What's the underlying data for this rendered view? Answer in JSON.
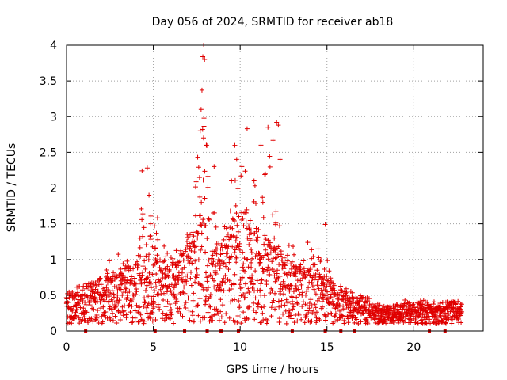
{
  "chart_data": {
    "type": "scatter",
    "title": "Day 056 of 2024, SRMTID for receiver ab18",
    "xlabel": "GPS time / hours",
    "ylabel": "SRMTID / TECUs",
    "xlim": [
      0,
      24
    ],
    "ylim": [
      0,
      4
    ],
    "xticks": [
      0,
      5,
      10,
      15,
      20
    ],
    "xtick_labels": [
      "0",
      "5",
      "10",
      "15",
      "20"
    ],
    "yticks": [
      0,
      0.5,
      1,
      1.5,
      2,
      2.5,
      3,
      3.5,
      4
    ],
    "ytick_labels": [
      "0",
      "0.5",
      "1",
      "1.5",
      "2",
      "2.5",
      "3",
      "3.5",
      "4"
    ],
    "grid": true,
    "legend": "none",
    "marker": "plus",
    "color": "#e00000",
    "data_span_hours": [
      0,
      22.8
    ],
    "envelope": [
      [
        0.0,
        0.3,
        0.55
      ],
      [
        1.0,
        0.35,
        0.6
      ],
      [
        2.0,
        0.4,
        0.9
      ],
      [
        3.0,
        0.45,
        1.3
      ],
      [
        4.0,
        0.55,
        1.2
      ],
      [
        4.5,
        0.7,
        2.3
      ],
      [
        5.5,
        0.6,
        1.4
      ],
      [
        6.5,
        0.6,
        1.3
      ],
      [
        7.3,
        0.8,
        1.8
      ],
      [
        7.8,
        1.1,
        4.0
      ],
      [
        8.3,
        0.7,
        2.1
      ],
      [
        9.0,
        0.7,
        1.7
      ],
      [
        9.6,
        0.9,
        2.6
      ],
      [
        10.2,
        1.0,
        2.8
      ],
      [
        11.0,
        0.8,
        2.4
      ],
      [
        11.8,
        0.8,
        2.9
      ],
      [
        12.5,
        0.6,
        1.4
      ],
      [
        13.5,
        0.5,
        1.2
      ],
      [
        14.5,
        0.45,
        1.5
      ],
      [
        15.5,
        0.35,
        0.7
      ],
      [
        17.0,
        0.25,
        0.45
      ],
      [
        18.5,
        0.15,
        0.35
      ],
      [
        20.0,
        0.2,
        0.5
      ],
      [
        21.5,
        0.2,
        0.4
      ],
      [
        22.8,
        0.2,
        0.35
      ]
    ],
    "peaks": [
      [
        4.35,
        2.24
      ],
      [
        4.65,
        2.28
      ],
      [
        4.75,
        1.9
      ],
      [
        4.85,
        1.5
      ],
      [
        7.7,
        2.8
      ],
      [
        7.75,
        3.1
      ],
      [
        7.8,
        3.37
      ],
      [
        7.85,
        3.84
      ],
      [
        7.9,
        4.0
      ],
      [
        7.95,
        3.8
      ],
      [
        8.05,
        2.6
      ],
      [
        8.5,
        2.3
      ],
      [
        9.5,
        2.1
      ],
      [
        9.8,
        2.4
      ],
      [
        10.1,
        2.3
      ],
      [
        10.4,
        2.83
      ],
      [
        10.8,
        2.1
      ],
      [
        11.2,
        2.6
      ],
      [
        11.6,
        2.85
      ],
      [
        12.1,
        2.92
      ],
      [
        12.2,
        2.88
      ],
      [
        12.3,
        2.4
      ],
      [
        14.9,
        1.49
      ]
    ],
    "gap_markers_hours": [
      1.1,
      5.1,
      6.8,
      8.1,
      8.9,
      9.9,
      13.0,
      14.9,
      15.8,
      16.6,
      20.9,
      21.8
    ]
  }
}
